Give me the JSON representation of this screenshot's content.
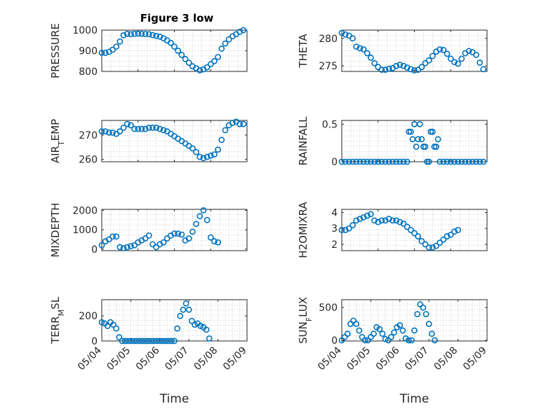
{
  "figure": {
    "title": "Figure 3 low"
  },
  "colors": {
    "marker": "#0072BD",
    "axes": "#262626",
    "grid": "#d7d7d7",
    "background": "#ffffff"
  },
  "chart_data": [
    {
      "type": "scatter",
      "id": "pressure",
      "ylabel": "PRESSURE",
      "ylim": [
        800,
        1000
      ],
      "yticks": [
        800,
        900,
        1000
      ],
      "ytick_labels": [
        "800",
        "900",
        "1000"
      ],
      "xlim": [
        "05/04",
        "05/08"
      ],
      "xticks": [
        "05/04",
        "05/05",
        "05/06",
        "05/07",
        "05/08"
      ],
      "x_tick_labels_shown": false,
      "grid": true,
      "points": [
        [
          0,
          890
        ],
        [
          0.1,
          890
        ],
        [
          0.2,
          895
        ],
        [
          0.3,
          905
        ],
        [
          0.4,
          920
        ],
        [
          0.5,
          945
        ],
        [
          0.6,
          975
        ],
        [
          0.7,
          982
        ],
        [
          0.8,
          980
        ],
        [
          0.9,
          982
        ],
        [
          1.0,
          983
        ],
        [
          1.1,
          982
        ],
        [
          1.2,
          981
        ],
        [
          1.3,
          980
        ],
        [
          1.4,
          976
        ],
        [
          1.5,
          972
        ],
        [
          1.6,
          968
        ],
        [
          1.7,
          960
        ],
        [
          1.8,
          950
        ],
        [
          1.9,
          938
        ],
        [
          2.0,
          920
        ],
        [
          2.1,
          900
        ],
        [
          2.2,
          880
        ],
        [
          2.3,
          860
        ],
        [
          2.4,
          842
        ],
        [
          2.5,
          825
        ],
        [
          2.6,
          815
        ],
        [
          2.7,
          805
        ],
        [
          2.8,
          810
        ],
        [
          2.9,
          820
        ],
        [
          3.0,
          835
        ],
        [
          3.1,
          850
        ],
        [
          3.2,
          870
        ],
        [
          3.3,
          910
        ],
        [
          3.4,
          935
        ],
        [
          3.5,
          955
        ],
        [
          3.6,
          970
        ],
        [
          3.7,
          980
        ],
        [
          3.8,
          992
        ],
        [
          3.9,
          1000
        ]
      ]
    },
    {
      "type": "scatter",
      "id": "theta",
      "ylabel": "THETA",
      "ylim": [
        274,
        281.5
      ],
      "yticks": [
        275,
        280
      ],
      "ytick_labels": [
        "275",
        "280"
      ],
      "xlim": [
        "05/04",
        "05/08"
      ],
      "xticks": [
        "05/04",
        "05/05",
        "05/06",
        "05/07",
        "05/08"
      ],
      "x_tick_labels_shown": false,
      "grid": true,
      "points": [
        [
          0,
          281
        ],
        [
          0.1,
          280.7
        ],
        [
          0.2,
          280.5
        ],
        [
          0.3,
          280
        ],
        [
          0.4,
          278.5
        ],
        [
          0.5,
          278.2
        ],
        [
          0.6,
          278
        ],
        [
          0.7,
          277.3
        ],
        [
          0.8,
          276.5
        ],
        [
          0.9,
          275.5
        ],
        [
          1.0,
          274.8
        ],
        [
          1.1,
          274.3
        ],
        [
          1.2,
          274.3
        ],
        [
          1.3,
          274.5
        ],
        [
          1.4,
          274.6
        ],
        [
          1.5,
          275
        ],
        [
          1.6,
          275.2
        ],
        [
          1.7,
          275
        ],
        [
          1.8,
          274.7
        ],
        [
          1.9,
          274.4
        ],
        [
          2.0,
          274.2
        ],
        [
          2.1,
          274.3
        ],
        [
          2.2,
          274.8
        ],
        [
          2.3,
          275.5
        ],
        [
          2.4,
          276
        ],
        [
          2.5,
          276.8
        ],
        [
          2.6,
          277.6
        ],
        [
          2.7,
          278
        ],
        [
          2.8,
          277.9
        ],
        [
          2.9,
          277.2
        ],
        [
          3.0,
          276.3
        ],
        [
          3.1,
          275.7
        ],
        [
          3.2,
          275.4
        ],
        [
          3.3,
          276.3
        ],
        [
          3.4,
          277.3
        ],
        [
          3.5,
          277.7
        ],
        [
          3.6,
          277.5
        ],
        [
          3.7,
          277
        ],
        [
          3.8,
          275.6
        ],
        [
          3.9,
          274.4
        ]
      ]
    },
    {
      "type": "scatter",
      "id": "air_temp",
      "ylabel": "AIR_TEMP",
      "ylim": [
        259,
        276
      ],
      "yticks": [
        260,
        270
      ],
      "ytick_labels": [
        "260",
        "270"
      ],
      "xlim": [
        "05/04",
        "05/08"
      ],
      "xticks": [
        "05/04",
        "05/05",
        "05/06",
        "05/07",
        "05/08"
      ],
      "x_tick_labels_shown": false,
      "grid": true,
      "points": [
        [
          0,
          271.5
        ],
        [
          0.1,
          271.5
        ],
        [
          0.2,
          271
        ],
        [
          0.3,
          271
        ],
        [
          0.4,
          270.5
        ],
        [
          0.5,
          271.5
        ],
        [
          0.6,
          273
        ],
        [
          0.7,
          274.5
        ],
        [
          0.8,
          274
        ],
        [
          0.9,
          272.5
        ],
        [
          1.0,
          272.5
        ],
        [
          1.1,
          272.5
        ],
        [
          1.2,
          272.5
        ],
        [
          1.3,
          273
        ],
        [
          1.4,
          273
        ],
        [
          1.5,
          273
        ],
        [
          1.6,
          272.5
        ],
        [
          1.7,
          272
        ],
        [
          1.8,
          271.5
        ],
        [
          1.9,
          270.5
        ],
        [
          2.0,
          269.5
        ],
        [
          2.1,
          268.5
        ],
        [
          2.2,
          267.5
        ],
        [
          2.3,
          266.5
        ],
        [
          2.4,
          265.5
        ],
        [
          2.5,
          264.5
        ],
        [
          2.6,
          263
        ],
        [
          2.7,
          261
        ],
        [
          2.8,
          260.5
        ],
        [
          2.9,
          261
        ],
        [
          3.0,
          261.5
        ],
        [
          3.1,
          262
        ],
        [
          3.2,
          264
        ],
        [
          3.3,
          268
        ],
        [
          3.4,
          272
        ],
        [
          3.5,
          274
        ],
        [
          3.6,
          275
        ],
        [
          3.7,
          275.5
        ],
        [
          3.8,
          274.5
        ],
        [
          3.9,
          274.5
        ]
      ]
    },
    {
      "type": "scatter",
      "id": "rainfall",
      "ylabel": "RAINFALL",
      "ylim": [
        0,
        0.55
      ],
      "yticks": [
        0,
        0.5
      ],
      "ytick_labels": [
        "0",
        "0.5"
      ],
      "xlim": [
        "05/04",
        "05/08"
      ],
      "xticks": [
        "05/04",
        "05/05",
        "05/06",
        "05/07",
        "05/08"
      ],
      "x_tick_labels_shown": false,
      "grid": true,
      "points": [
        [
          0,
          0
        ],
        [
          0.1,
          0
        ],
        [
          0.2,
          0
        ],
        [
          0.3,
          0
        ],
        [
          0.4,
          0
        ],
        [
          0.5,
          0
        ],
        [
          0.6,
          0
        ],
        [
          0.7,
          0
        ],
        [
          0.8,
          0
        ],
        [
          0.9,
          0
        ],
        [
          1.0,
          0
        ],
        [
          1.1,
          0
        ],
        [
          1.2,
          0
        ],
        [
          1.3,
          0
        ],
        [
          1.4,
          0
        ],
        [
          1.5,
          0
        ],
        [
          1.6,
          0
        ],
        [
          1.7,
          0
        ],
        [
          1.8,
          0
        ],
        [
          1.85,
          0.4
        ],
        [
          1.9,
          0.4
        ],
        [
          1.95,
          0.3
        ],
        [
          2.0,
          0.5
        ],
        [
          2.05,
          0.2
        ],
        [
          2.1,
          0.3
        ],
        [
          2.15,
          0.5
        ],
        [
          2.2,
          0.3
        ],
        [
          2.25,
          0.2
        ],
        [
          2.3,
          0.2
        ],
        [
          2.35,
          0
        ],
        [
          2.4,
          0
        ],
        [
          2.45,
          0.4
        ],
        [
          2.5,
          0.4
        ],
        [
          2.55,
          0.2
        ],
        [
          2.6,
          0.2
        ],
        [
          2.65,
          0.3
        ],
        [
          2.7,
          0
        ],
        [
          2.8,
          0
        ],
        [
          2.9,
          0
        ],
        [
          3.0,
          0
        ],
        [
          3.1,
          0
        ],
        [
          3.2,
          0
        ],
        [
          3.3,
          0
        ],
        [
          3.4,
          0
        ],
        [
          3.5,
          0
        ],
        [
          3.6,
          0
        ],
        [
          3.7,
          0
        ],
        [
          3.8,
          0
        ],
        [
          3.9,
          0
        ]
      ]
    },
    {
      "type": "scatter",
      "id": "mixdepth",
      "ylabel": "MIXDEPTH",
      "ylim": [
        -80,
        2050
      ],
      "yticks": [
        0,
        1000,
        2000
      ],
      "ytick_labels": [
        "0",
        "1000",
        "2000"
      ],
      "xlim": [
        "05/04",
        "05/08"
      ],
      "xticks": [
        "05/04",
        "05/05",
        "05/06",
        "05/07",
        "05/08"
      ],
      "x_tick_labels_shown": false,
      "grid": true,
      "points": [
        [
          0,
          200
        ],
        [
          0.1,
          400
        ],
        [
          0.2,
          500
        ],
        [
          0.3,
          650
        ],
        [
          0.4,
          650
        ],
        [
          0.5,
          100
        ],
        [
          0.6,
          50
        ],
        [
          0.7,
          100
        ],
        [
          0.8,
          150
        ],
        [
          0.9,
          200
        ],
        [
          1.0,
          350
        ],
        [
          1.1,
          450
        ],
        [
          1.2,
          550
        ],
        [
          1.3,
          700
        ],
        [
          1.4,
          250
        ],
        [
          1.5,
          100
        ],
        [
          1.6,
          250
        ],
        [
          1.7,
          350
        ],
        [
          1.8,
          550
        ],
        [
          1.9,
          700
        ],
        [
          2.0,
          800
        ],
        [
          2.1,
          800
        ],
        [
          2.2,
          750
        ],
        [
          2.3,
          450
        ],
        [
          2.4,
          550
        ],
        [
          2.5,
          900
        ],
        [
          2.6,
          1300
        ],
        [
          2.7,
          1700
        ],
        [
          2.8,
          2000
        ],
        [
          2.9,
          1500
        ],
        [
          3.0,
          600
        ],
        [
          3.1,
          400
        ],
        [
          3.2,
          350
        ]
      ]
    },
    {
      "type": "scatter",
      "id": "h2omixra",
      "ylabel": "H2OMIXRA",
      "ylim": [
        1.6,
        4.2
      ],
      "yticks": [
        2,
        3,
        4
      ],
      "ytick_labels": [
        "2",
        "3",
        "4"
      ],
      "xlim": [
        "05/04",
        "05/08"
      ],
      "xticks": [
        "05/04",
        "05/05",
        "05/06",
        "05/07",
        "05/08"
      ],
      "x_tick_labels_shown": false,
      "grid": true,
      "points": [
        [
          0,
          2.9
        ],
        [
          0.1,
          2.9
        ],
        [
          0.2,
          3.0
        ],
        [
          0.3,
          3.2
        ],
        [
          0.4,
          3.5
        ],
        [
          0.5,
          3.6
        ],
        [
          0.6,
          3.7
        ],
        [
          0.7,
          3.8
        ],
        [
          0.8,
          3.9
        ],
        [
          0.9,
          3.5
        ],
        [
          1.0,
          3.4
        ],
        [
          1.1,
          3.5
        ],
        [
          1.2,
          3.5
        ],
        [
          1.3,
          3.6
        ],
        [
          1.4,
          3.5
        ],
        [
          1.5,
          3.5
        ],
        [
          1.6,
          3.4
        ],
        [
          1.7,
          3.3
        ],
        [
          1.8,
          3.1
        ],
        [
          1.9,
          2.9
        ],
        [
          2.0,
          2.7
        ],
        [
          2.1,
          2.5
        ],
        [
          2.2,
          2.2
        ],
        [
          2.3,
          2.0
        ],
        [
          2.4,
          1.8
        ],
        [
          2.5,
          1.8
        ],
        [
          2.6,
          1.9
        ],
        [
          2.7,
          2.1
        ],
        [
          2.8,
          2.3
        ],
        [
          2.9,
          2.5
        ],
        [
          3.0,
          2.6
        ],
        [
          3.1,
          2.8
        ],
        [
          3.2,
          2.9
        ]
      ]
    },
    {
      "type": "scatter",
      "id": "terr_msl",
      "ylabel": "TERR_MSL",
      "ylim": [
        0,
        330
      ],
      "yticks": [
        0,
        200
      ],
      "ytick_labels": [
        "0",
        "200"
      ],
      "xlim": [
        "05/04",
        "05/09"
      ],
      "xticks": [
        "05/04",
        "05/05",
        "05/06",
        "05/07",
        "05/08",
        "05/09"
      ],
      "xtick_labels": [
        "05/04",
        "05/05",
        "05/06",
        "05/07",
        "05/08",
        "05/09"
      ],
      "xlabel": "Time",
      "grid": true,
      "points": [
        [
          0,
          150
        ],
        [
          0.1,
          140
        ],
        [
          0.2,
          120
        ],
        [
          0.3,
          150
        ],
        [
          0.4,
          130
        ],
        [
          0.5,
          100
        ],
        [
          0.6,
          30
        ],
        [
          0.7,
          0
        ],
        [
          0.8,
          0
        ],
        [
          0.9,
          0
        ],
        [
          1.0,
          0
        ],
        [
          1.1,
          0
        ],
        [
          1.2,
          0
        ],
        [
          1.3,
          0
        ],
        [
          1.4,
          0
        ],
        [
          1.5,
          0
        ],
        [
          1.6,
          0
        ],
        [
          1.7,
          0
        ],
        [
          1.8,
          0
        ],
        [
          1.9,
          0
        ],
        [
          2.0,
          0
        ],
        [
          2.1,
          0
        ],
        [
          2.2,
          0
        ],
        [
          2.3,
          0
        ],
        [
          2.4,
          0
        ],
        [
          2.5,
          0
        ],
        [
          2.6,
          100
        ],
        [
          2.7,
          200
        ],
        [
          2.8,
          250
        ],
        [
          2.9,
          300
        ],
        [
          3.0,
          250
        ],
        [
          3.1,
          160
        ],
        [
          3.2,
          130
        ],
        [
          3.3,
          140
        ],
        [
          3.4,
          120
        ],
        [
          3.5,
          110
        ],
        [
          3.6,
          90
        ],
        [
          3.7,
          20
        ]
      ]
    },
    {
      "type": "scatter",
      "id": "sun_flux",
      "ylabel": "SUN_FLUX",
      "ylim": [
        -10,
        620
      ],
      "yticks": [
        0,
        500
      ],
      "ytick_labels": [
        "0",
        "500"
      ],
      "xlim": [
        "05/04",
        "05/09"
      ],
      "xticks": [
        "05/04",
        "05/05",
        "05/06",
        "05/07",
        "05/08",
        "05/09"
      ],
      "xtick_labels": [
        "05/04",
        "05/05",
        "05/06",
        "05/07",
        "05/08",
        "05/09"
      ],
      "xlabel": "Time",
      "grid": true,
      "points": [
        [
          0,
          0
        ],
        [
          0.1,
          50
        ],
        [
          0.2,
          100
        ],
        [
          0.3,
          250
        ],
        [
          0.4,
          300
        ],
        [
          0.5,
          250
        ],
        [
          0.6,
          150
        ],
        [
          0.7,
          50
        ],
        [
          0.8,
          0
        ],
        [
          0.9,
          0
        ],
        [
          1.0,
          50
        ],
        [
          1.1,
          100
        ],
        [
          1.2,
          200
        ],
        [
          1.3,
          170
        ],
        [
          1.4,
          100
        ],
        [
          1.5,
          20
        ],
        [
          1.6,
          0
        ],
        [
          1.7,
          50
        ],
        [
          1.8,
          120
        ],
        [
          1.9,
          200
        ],
        [
          2.0,
          230
        ],
        [
          2.1,
          150
        ],
        [
          2.2,
          30
        ],
        [
          2.3,
          0
        ],
        [
          2.4,
          0
        ],
        [
          2.5,
          150
        ],
        [
          2.6,
          400
        ],
        [
          2.7,
          550
        ],
        [
          2.8,
          500
        ],
        [
          2.9,
          400
        ],
        [
          3.0,
          250
        ],
        [
          3.1,
          100
        ],
        [
          3.2,
          0
        ]
      ]
    }
  ]
}
